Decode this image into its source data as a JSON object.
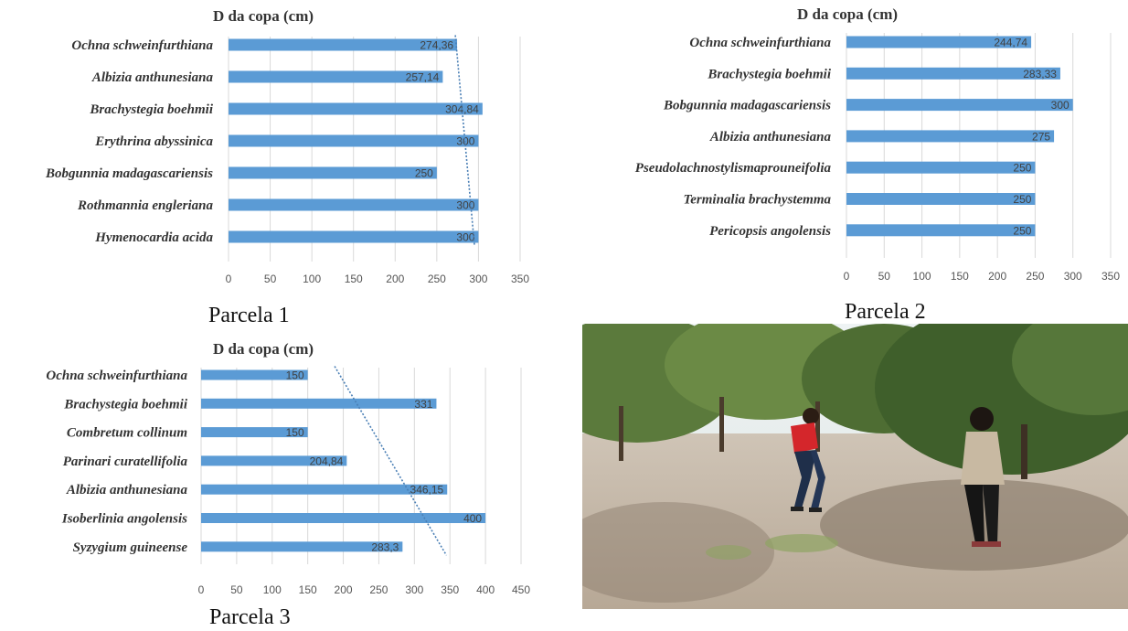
{
  "chart_data": [
    {
      "type": "bar",
      "title": "D da copa (cm)",
      "caption": "Parcela 1",
      "categories": [
        "Ochna schweinfurthiana",
        "Albizia anthunesiana",
        "Brachystegia boehmii",
        "Erythrina abyssinica",
        "Bobgunnia madagascariensis",
        "Rothmannia engleriana",
        "Hymenocardia acida"
      ],
      "values": [
        274.36,
        257.14,
        304.84,
        300,
        250,
        300,
        300
      ],
      "value_labels": [
        "274,36",
        "257,14",
        "304,84",
        "300",
        "250",
        "300",
        "300"
      ],
      "xlim": [
        0,
        350
      ],
      "xticks": [
        0,
        50,
        100,
        150,
        200,
        250,
        300,
        350
      ],
      "grid": true,
      "trendline": true
    },
    {
      "type": "bar",
      "title": "D da copa (cm)",
      "caption": "Parcela 2",
      "categories": [
        "Ochna schweinfurthiana",
        "Brachystegia boehmii",
        "Bobgunnia madagascariensis",
        "Albizia anthunesiana",
        "Pseudolachnostylismaprouneifolia",
        "Terminalia brachystemma",
        "Pericopsis angolensis"
      ],
      "values": [
        244.74,
        283.33,
        300,
        275,
        250,
        250,
        250
      ],
      "value_labels": [
        "244,74",
        "283,33",
        "300",
        "275",
        "250",
        "250",
        "250"
      ],
      "xlim": [
        0,
        350
      ],
      "xticks": [
        0,
        50,
        100,
        150,
        200,
        250,
        300,
        350
      ],
      "grid": true,
      "trendline": false
    },
    {
      "type": "bar",
      "title": "D da copa (cm)",
      "caption": "Parcela 3",
      "categories": [
        "Ochna schweinfurthiana",
        "Brachystegia boehmii",
        "Combretum collinum",
        "Parinari curatellifolia",
        "Albizia anthunesiana",
        "Isoberlinia angolensis",
        "Syzygium guineense"
      ],
      "values": [
        150,
        331,
        150,
        204.84,
        346.15,
        400,
        283.3
      ],
      "value_labels": [
        "150",
        "331",
        "150",
        "204,84",
        "346,15",
        "400",
        "283,3"
      ],
      "xlim": [
        0,
        450
      ],
      "xticks": [
        0,
        50,
        100,
        150,
        200,
        250,
        300,
        350,
        400,
        450
      ],
      "grid": true,
      "trendline": true
    }
  ],
  "colors": {
    "bar": "#5b9bd5",
    "grid": "#d9d9d9",
    "trend": "#4a7fb5"
  },
  "photo": {
    "description_icon": "field-photo"
  }
}
